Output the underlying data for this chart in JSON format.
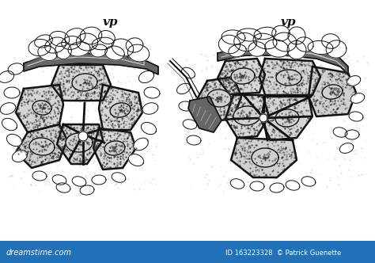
{
  "background_color": "#ffffff",
  "ink_color": "#111111",
  "vp_label": "vp",
  "figsize": [
    4.74,
    3.32
  ],
  "dpi": 100,
  "watermark_text": "163223328",
  "watermark_author": "Patrick Guenette",
  "dreamstimetext": "dreamstime.com",
  "watermark_bg": "#2271b8"
}
